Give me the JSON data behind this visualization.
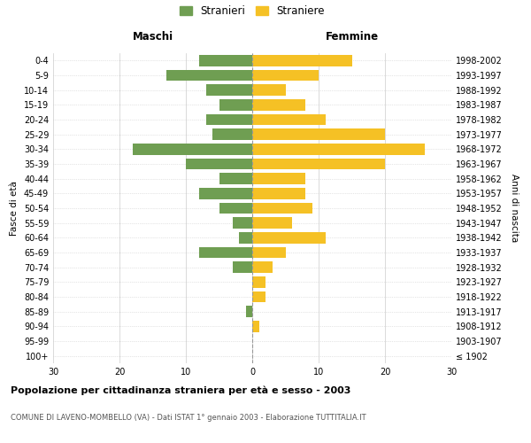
{
  "age_groups": [
    "100+",
    "95-99",
    "90-94",
    "85-89",
    "80-84",
    "75-79",
    "70-74",
    "65-69",
    "60-64",
    "55-59",
    "50-54",
    "45-49",
    "40-44",
    "35-39",
    "30-34",
    "25-29",
    "20-24",
    "15-19",
    "10-14",
    "5-9",
    "0-4"
  ],
  "birth_years": [
    "≤ 1902",
    "1903-1907",
    "1908-1912",
    "1913-1917",
    "1918-1922",
    "1923-1927",
    "1928-1932",
    "1933-1937",
    "1938-1942",
    "1943-1947",
    "1948-1952",
    "1953-1957",
    "1958-1962",
    "1963-1967",
    "1968-1972",
    "1973-1977",
    "1978-1982",
    "1983-1987",
    "1988-1992",
    "1993-1997",
    "1998-2002"
  ],
  "maschi": [
    0,
    0,
    0,
    1,
    0,
    0,
    3,
    8,
    2,
    3,
    5,
    8,
    5,
    10,
    18,
    6,
    7,
    5,
    7,
    13,
    8
  ],
  "femmine": [
    0,
    0,
    1,
    0,
    2,
    2,
    3,
    5,
    11,
    6,
    9,
    8,
    8,
    20,
    26,
    20,
    11,
    8,
    5,
    10,
    15
  ],
  "maschi_color": "#6f9e52",
  "femmine_color": "#f5c125",
  "background_color": "#ffffff",
  "grid_color": "#cccccc",
  "title": "Popolazione per cittadinanza straniera per età e sesso - 2003",
  "subtitle": "COMUNE DI LAVENO-MOMBELLO (VA) - Dati ISTAT 1° gennaio 2003 - Elaborazione TUTTITALIA.IT",
  "xlabel_left": "Maschi",
  "xlabel_right": "Femmine",
  "ylabel_left": "Fasce di età",
  "ylabel_right": "Anni di nascita",
  "legend_stranieri": "Stranieri",
  "legend_straniere": "Straniere",
  "xlim": 30
}
